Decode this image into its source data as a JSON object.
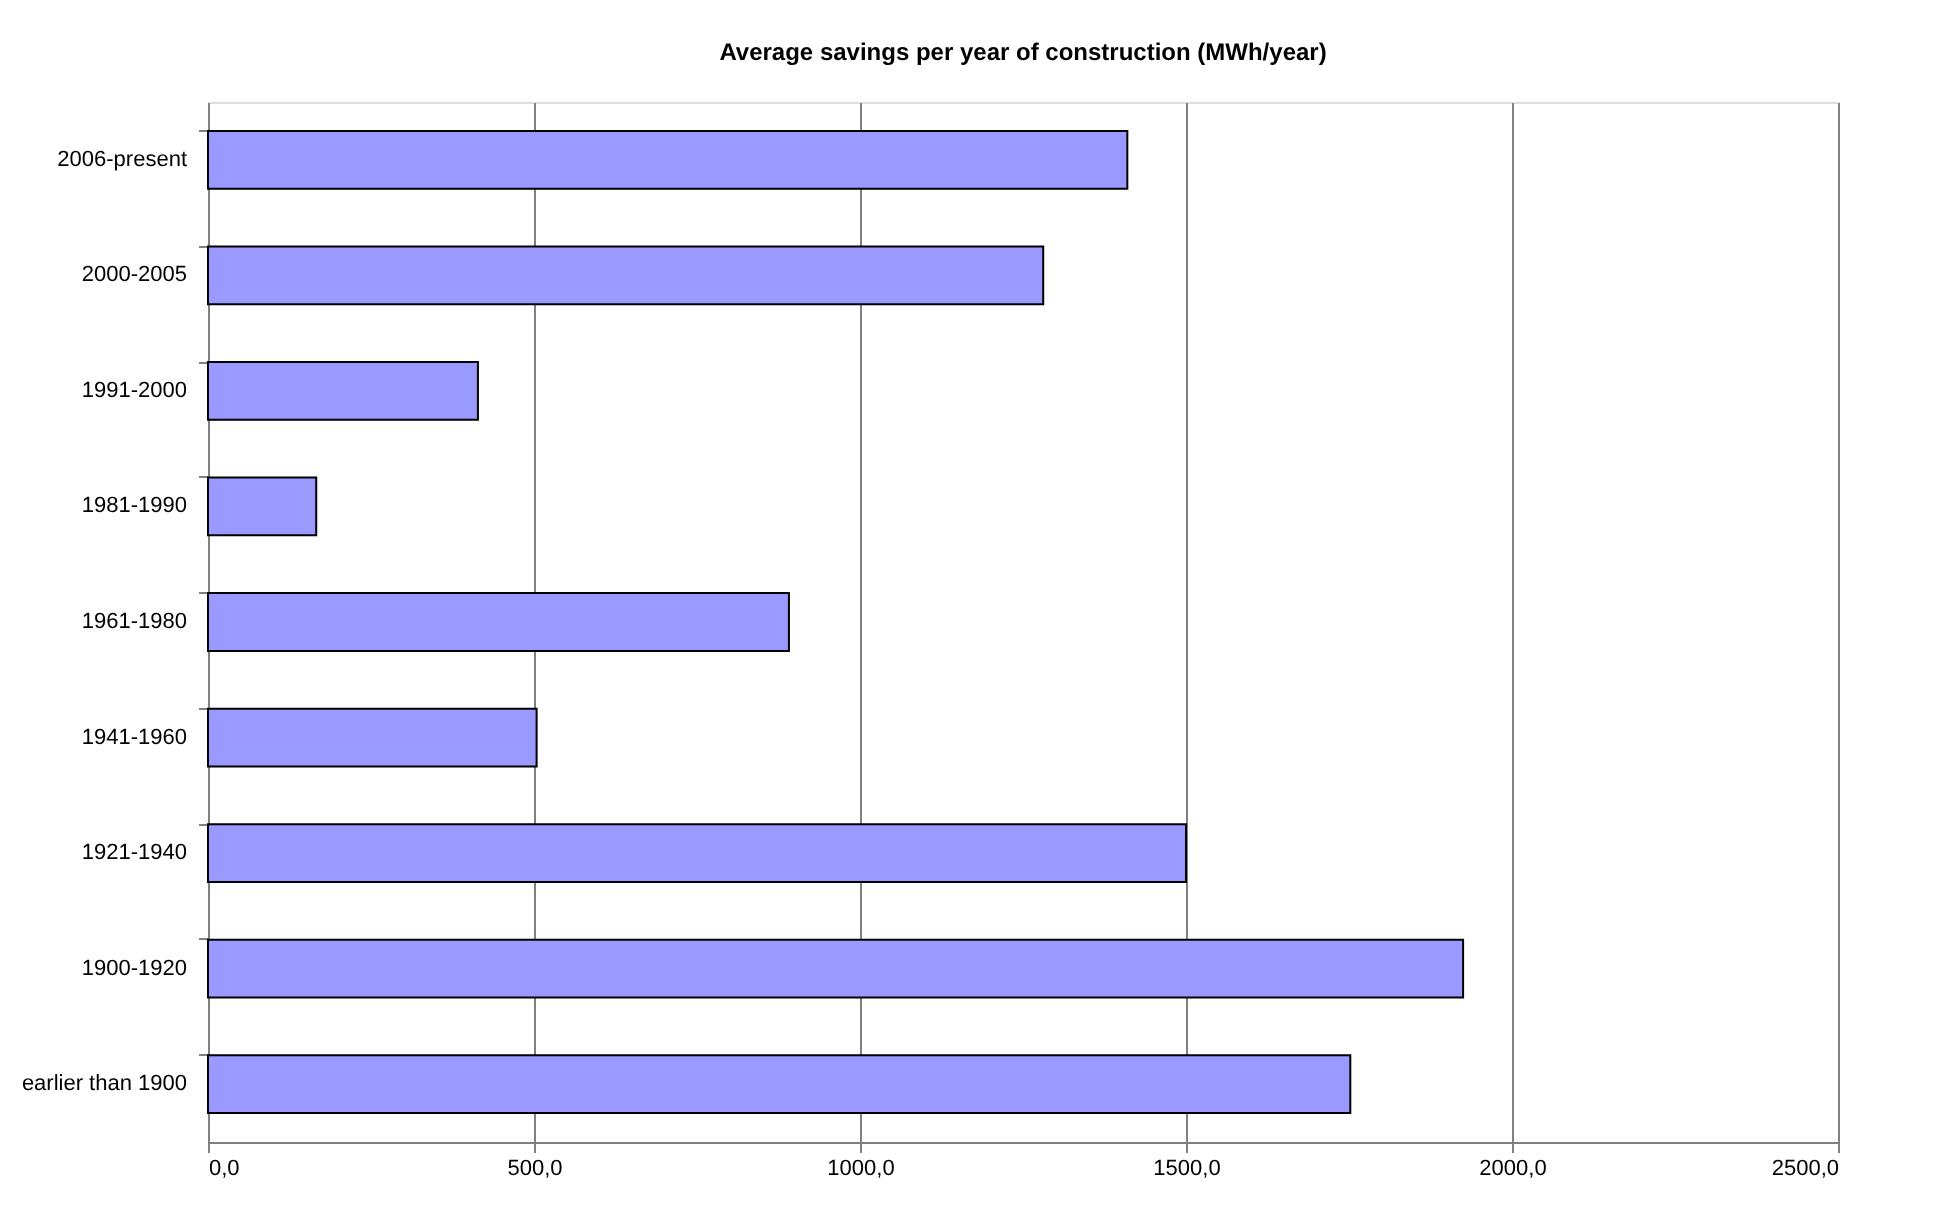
{
  "chart_data": {
    "type": "bar",
    "orientation": "horizontal",
    "title": "Average savings per year of construction (MWh/year)",
    "categories": [
      "2006-present",
      "2000-2005",
      "1991-2000",
      "1981-1990",
      "1961-1980",
      "1941-1960",
      "1921-1940",
      "1900-1920",
      "earlier than 1900"
    ],
    "values": [
      1410,
      1281,
      414,
      166,
      891,
      504,
      1500,
      1925,
      1752
    ],
    "color": "#9999ff",
    "xlim": [
      0,
      2500
    ],
    "xticks": [
      {
        "value": 0,
        "label": "0,0"
      },
      {
        "value": 500,
        "label": "500,0"
      },
      {
        "value": 1000,
        "label": "1000,0"
      },
      {
        "value": 1500,
        "label": "1500,0"
      },
      {
        "value": 2000,
        "label": "2000,0"
      },
      {
        "value": 2500,
        "label": "2500,0"
      }
    ],
    "grid": "x"
  }
}
